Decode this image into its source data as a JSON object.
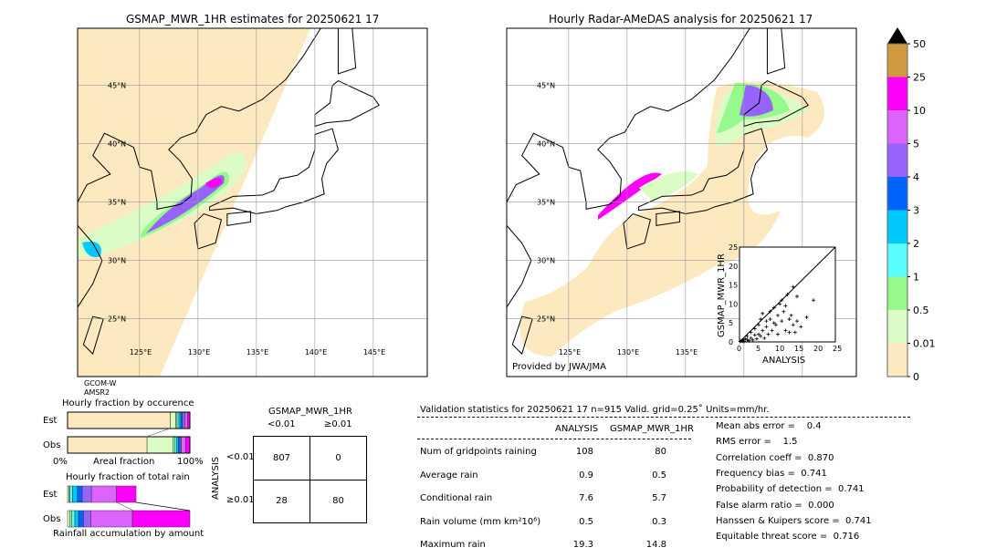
{
  "left_map": {
    "title": "GSMAP_MWR_1HR estimates for 20250621 17",
    "satellite": [
      "GCOM-W",
      "AMSR2"
    ]
  },
  "right_map": {
    "title": "Hourly Radar-AMeDAS analysis for 20250621 17",
    "credit": "Provided by JWA/JMA"
  },
  "map_ticks": {
    "lat": [
      "45°N",
      "40°N",
      "35°N",
      "30°N",
      "25°N"
    ],
    "lon": [
      "125°E",
      "130°E",
      "135°E",
      "140°E",
      "145°E"
    ]
  },
  "colorbar": {
    "labels": [
      "0",
      "0.01",
      "0.5",
      "1",
      "2",
      "3",
      "4",
      "5",
      "10",
      "25",
      "50"
    ],
    "colors": [
      "#fde9c0",
      "#dcfcc6",
      "#96f98c",
      "#5afcfc",
      "#00c8fc",
      "#0064fc",
      "#9664fc",
      "#dc64fc",
      "#fc00fc",
      "#d09a40"
    ],
    "extend_color": "#000000"
  },
  "chart_data": [
    {
      "type": "scatter",
      "xlabel": "ANALYSIS",
      "ylabel": "GSMAP_MWR_1HR",
      "xlim": [
        0,
        25
      ],
      "ylim": [
        0,
        25
      ],
      "ticks": [
        "0",
        "5",
        "10",
        "15",
        "20",
        "25"
      ],
      "diagonal": true,
      "points": [
        [
          0.2,
          0.1
        ],
        [
          0.5,
          0.3
        ],
        [
          0.8,
          0.2
        ],
        [
          1,
          0.5
        ],
        [
          1.2,
          0.1
        ],
        [
          1.5,
          0.8
        ],
        [
          2,
          0.5
        ],
        [
          2,
          1.5
        ],
        [
          2.5,
          0.3
        ],
        [
          3,
          1
        ],
        [
          3,
          2.5
        ],
        [
          3.5,
          0.5
        ],
        [
          4,
          1.8
        ],
        [
          4,
          3.5
        ],
        [
          4.5,
          0.8
        ],
        [
          5,
          2
        ],
        [
          5,
          4.5
        ],
        [
          5.5,
          1.5
        ],
        [
          5.5,
          6
        ],
        [
          6,
          3
        ],
        [
          6,
          7.5
        ],
        [
          6.5,
          1
        ],
        [
          7,
          4
        ],
        [
          7,
          5.5
        ],
        [
          7.5,
          2
        ],
        [
          8,
          6
        ],
        [
          8,
          8
        ],
        [
          8.5,
          3
        ],
        [
          9,
          5
        ],
        [
          9,
          9
        ],
        [
          9.5,
          4.5
        ],
        [
          10,
          2
        ],
        [
          10,
          7
        ],
        [
          10.5,
          10
        ],
        [
          11,
          5.5
        ],
        [
          11,
          11
        ],
        [
          11.5,
          8
        ],
        [
          12,
          3
        ],
        [
          12,
          9.5
        ],
        [
          12.5,
          12.5
        ],
        [
          13,
          6
        ],
        [
          13,
          2.5
        ],
        [
          13.5,
          7
        ],
        [
          14,
          4.5
        ],
        [
          14,
          14.5
        ],
        [
          14.5,
          2.5
        ],
        [
          15,
          12
        ],
        [
          15,
          5.5
        ],
        [
          16,
          4
        ],
        [
          17.5,
          6.5
        ],
        [
          19.3,
          11
        ]
      ]
    },
    {
      "type": "bar",
      "title": "Hourly fraction by occurence",
      "xlabel": "Areal fraction",
      "xticks": [
        "0%",
        "100%"
      ],
      "categories": [
        "Est",
        "Obs"
      ],
      "segments_percent": {
        "Est": [
          84,
          4.5,
          1,
          1.5,
          1.5,
          1.5,
          2,
          2,
          2
        ],
        "Obs": [
          65,
          21,
          1.5,
          1.5,
          1.5,
          1.5,
          1,
          3.5,
          3.5
        ]
      }
    },
    {
      "type": "bar",
      "title": "Hourly fraction of total rain",
      "xlabel": "Rainfall accumulation by amount",
      "categories": [
        "Est",
        "Obs"
      ],
      "segments_percent": {
        "Est": [
          0,
          1,
          1,
          2,
          4,
          4,
          7.5,
          20.5,
          16
        ],
        "Obs": [
          0,
          2,
          1.5,
          2.5,
          3,
          4,
          6,
          34,
          47
        ]
      }
    }
  ],
  "contingency": {
    "title": "GSMAP_MWR_1HR",
    "cols": [
      "<0.01",
      "≥0.01"
    ],
    "row_label": "ANALYSIS",
    "rows": [
      "<0.01",
      "≥0.01"
    ],
    "cells": [
      [
        "807",
        "0"
      ],
      [
        "28",
        "80"
      ]
    ]
  },
  "stats": {
    "header": "Validation statistics for 20250621 17  n=915 Valid. grid=0.25˚ Units=mm/hr.",
    "cols": [
      "ANALYSIS",
      "GSMAP_MWR_1HR"
    ],
    "rows": [
      {
        "label": "Num of gridpoints raining",
        "a": "108",
        "g": "80"
      },
      {
        "label": "Average rain",
        "a": "0.9",
        "g": "0.5"
      },
      {
        "label": "Conditional rain",
        "a": "7.6",
        "g": "5.7"
      },
      {
        "label": "Rain volume (mm km²10⁶)",
        "a": "0.5",
        "g": "0.3"
      },
      {
        "label": "Maximum rain",
        "a": "19.3",
        "g": "14.8"
      }
    ],
    "scores": [
      "Mean abs error =    0.4",
      "RMS error =    1.5",
      "Correlation coeff =  0.870",
      "Frequency bias =  0.741",
      "Probability of detection =  0.741",
      "False alarm ratio =  0.000",
      "Hanssen & Kuipers score =  0.741",
      "Equitable threat score =  0.716"
    ]
  }
}
